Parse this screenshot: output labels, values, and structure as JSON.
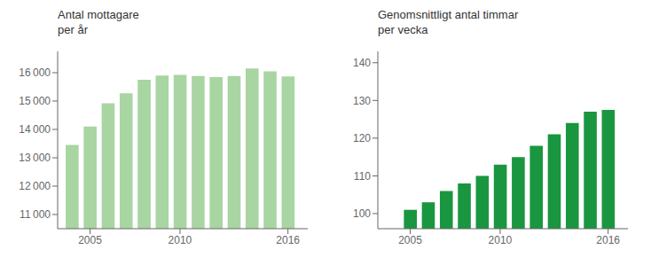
{
  "chart_data": [
    {
      "type": "bar",
      "title": "Antal mottagare",
      "subtitle": "per år",
      "x": [
        2004,
        2005,
        2006,
        2007,
        2008,
        2009,
        2010,
        2011,
        2012,
        2013,
        2014,
        2015,
        2016
      ],
      "values": [
        13450,
        14100,
        14920,
        15270,
        15750,
        15900,
        15920,
        15880,
        15840,
        15880,
        16150,
        16050,
        15870
      ],
      "color": "#a8d5a2",
      "xlim": [
        2003.2,
        2017.1
      ],
      "xticks": [
        2005,
        2010,
        2016
      ],
      "ylim": [
        10500,
        16750
      ],
      "yticks": [
        {
          "value": 11000,
          "label": "11 000"
        },
        {
          "value": 12000,
          "label": "12 000"
        },
        {
          "value": 13000,
          "label": "13 000"
        },
        {
          "value": 14000,
          "label": "14 000"
        },
        {
          "value": 15000,
          "label": "15 000"
        },
        {
          "value": 16000,
          "label": "16 000"
        }
      ],
      "grid": false
    },
    {
      "type": "bar",
      "title": "Genomsnittligt antal timmar",
      "subtitle": "per vecka",
      "x": [
        2005,
        2006,
        2007,
        2008,
        2009,
        2010,
        2011,
        2012,
        2013,
        2014,
        2015,
        2016
      ],
      "values": [
        101,
        103,
        106,
        108,
        110,
        113,
        115,
        118,
        121,
        124,
        127,
        127.5
      ],
      "color": "#1a9640",
      "xlim": [
        2003.2,
        2017.1
      ],
      "xticks": [
        2005,
        2010,
        2016
      ],
      "ylim": [
        96,
        143
      ],
      "yticks": [
        100,
        110,
        120,
        130,
        140
      ],
      "grid": false
    }
  ]
}
